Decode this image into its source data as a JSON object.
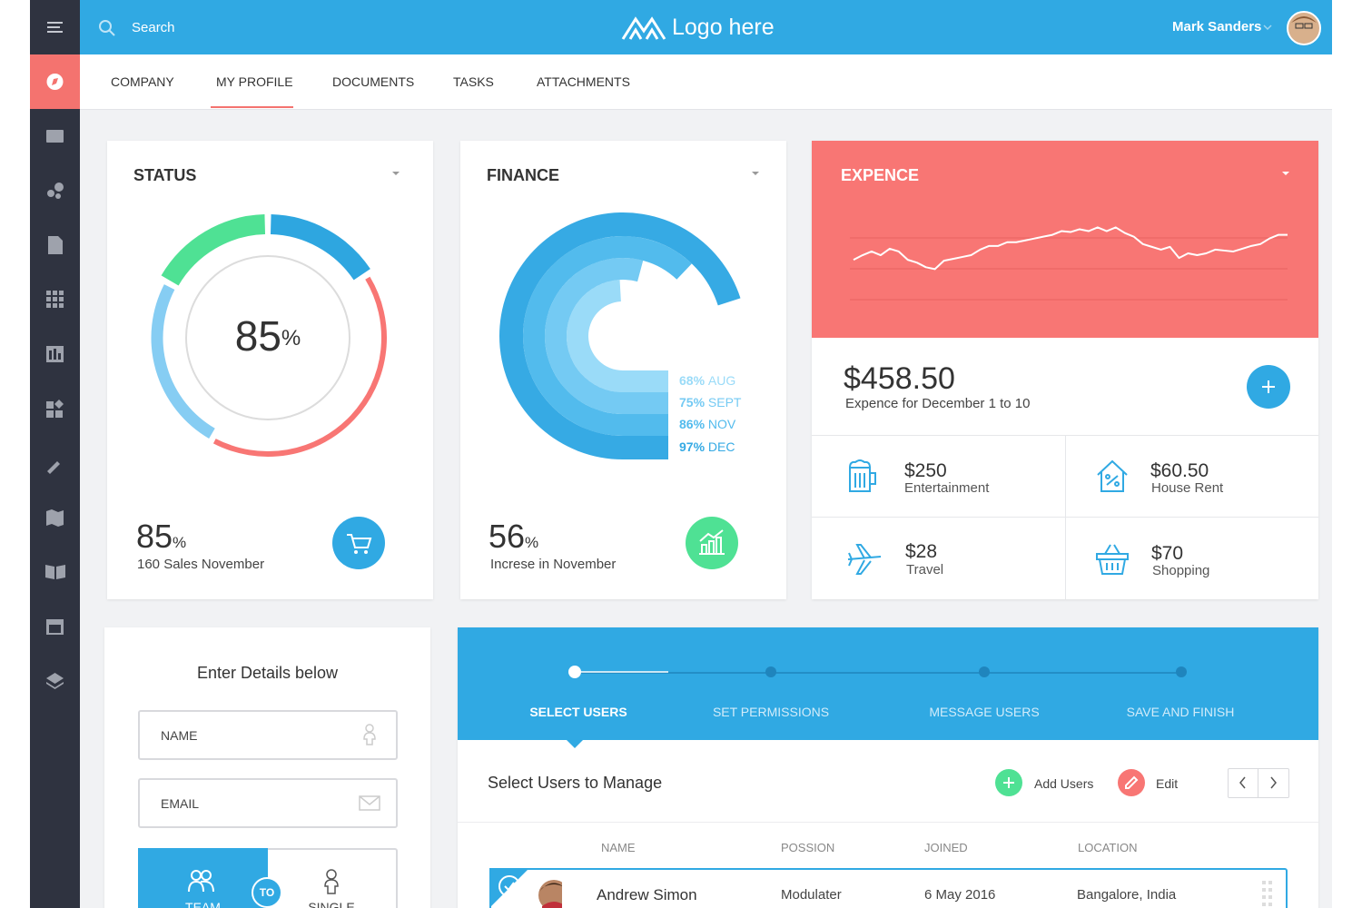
{
  "header": {
    "search": "Search",
    "logo": "Logo here",
    "user": "Mark Sanders"
  },
  "tabs": [
    "COMPANY",
    "MY PROFILE",
    "DOCUMENTS",
    "TASKS",
    "ATTACHMENTS"
  ],
  "status_card": {
    "value": "85",
    "unit": "%",
    "caption": "160 Sales November"
  },
  "finance_card": {
    "value": "56",
    "unit": "%",
    "caption": "Increse in November"
  },
  "expense_card": {
    "amount": "$458.50",
    "caption": "Expence for December 1 to 10",
    "items": [
      {
        "amount": "$250",
        "label": "Entertainment"
      },
      {
        "amount": "$60.50",
        "label": "House Rent"
      },
      {
        "amount": "$28",
        "label": "Travel"
      },
      {
        "amount": "$70",
        "label": "Shopping"
      }
    ]
  },
  "form": {
    "title": "Enter Details below",
    "fields": [
      "NAME",
      "EMAIL"
    ],
    "toggle": [
      "TEAM",
      "SINGLE"
    ],
    "separator": "TO"
  },
  "stepper": {
    "steps": [
      "SELECT USERS",
      "SET PERMISSIONS",
      "MESSAGE USERS",
      "SAVE AND FINISH"
    ]
  },
  "users": {
    "title": "Select Users to Manage",
    "actions": [
      "Add Users",
      "Edit"
    ],
    "columns": [
      "NAME",
      "POSSION",
      "JOINED",
      "LOCATION"
    ],
    "rows": [
      [
        "Andrew Simon",
        "Modulater",
        "6 May 2016",
        "Bangalore, India"
      ]
    ]
  },
  "chart_data": [
    {
      "type": "donut",
      "title": "STATUS",
      "center_value": 85,
      "center_unit": "%",
      "values": [
        16,
        42,
        25,
        17
      ],
      "colors": [
        "#2ea6e0",
        "#f87674",
        "#86cdf3",
        "#4fe194"
      ]
    },
    {
      "type": "radial-bar",
      "title": "FINANCE",
      "categories": [
        "AUG",
        "SEPT",
        "NOV",
        "DEC"
      ],
      "values": [
        68,
        75,
        86,
        97
      ],
      "value_labels": [
        "68%",
        "75%",
        "86%",
        "97%"
      ],
      "colors": [
        "#9adbf8",
        "#74caf3",
        "#52bbed",
        "#36aae4"
      ]
    },
    {
      "type": "line",
      "title": "EXPENCE",
      "color": "#ffffff",
      "ylim": [
        0,
        100
      ],
      "values": [
        43,
        48,
        52,
        48,
        55,
        52,
        43,
        40,
        35,
        33,
        42,
        44,
        46,
        48,
        54,
        58,
        58,
        62,
        62,
        64,
        66,
        68,
        70,
        74,
        73,
        76,
        74,
        78,
        74,
        78,
        72,
        68,
        60,
        57,
        54,
        57,
        45,
        50,
        48,
        50,
        54,
        53,
        52,
        55,
        58,
        60,
        66,
        70,
        70
      ]
    }
  ]
}
